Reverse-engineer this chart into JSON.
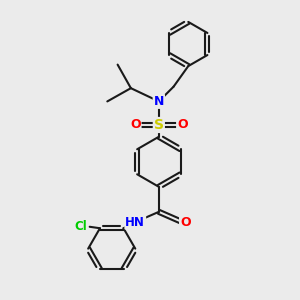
{
  "bg_color": "#ebebeb",
  "bond_color": "#1a1a1a",
  "bond_width": 1.5,
  "atom_colors": {
    "N": "#0000ff",
    "O": "#ff0000",
    "S": "#cccc00",
    "Cl": "#00cc00",
    "C": "#1a1a1a"
  },
  "figsize": [
    3.0,
    3.0
  ],
  "dpi": 100
}
